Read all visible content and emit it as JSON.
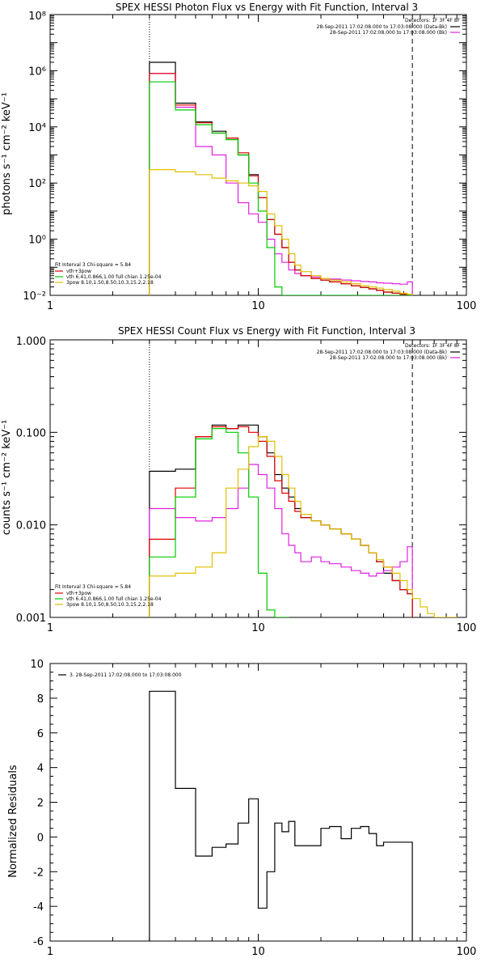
{
  "chart_data": [
    {
      "type": "line",
      "title": "SPEX HESSI Photon Flux vs Energy with Fit Function, Interval 3",
      "xlabel": "",
      "ylabel": "photons s⁻¹ cm⁻² keV⁻¹",
      "xscale": "log",
      "yscale": "log",
      "xlim": [
        1,
        100
      ],
      "ylim": [
        0.01,
        100000000
      ],
      "x_tick_labels": [
        "1",
        "10",
        "100"
      ],
      "y_tick_labels": [
        "10⁻²",
        "10⁰",
        "10²",
        "10⁴",
        "10⁶",
        "10⁸"
      ],
      "vlines": [
        3,
        55
      ],
      "legend_top": {
        "title": "Detectors: 1F 3F 4F 8F",
        "entries": [
          {
            "label": "28-Sep-2011 17:02:08.000 to 17:03:08.000 (Data-Bk)",
            "color": "#000000"
          },
          {
            "label": "28-Sep-2011 17:02:08.000 to 17:03:08.000 (Bk)",
            "color": "#e020e0"
          }
        ]
      },
      "legend_fit": {
        "title": "Fit Interval 3   Chi-square = 5.84",
        "entries": [
          {
            "label": "vth+3pow",
            "color": "#dd0000"
          },
          {
            "label": "vth 6.41,0.866,1.00  full chian 1.25e-04",
            "color": "#00cc00"
          },
          {
            "label": "3pow 8.10,1.50,8.50,10.3,15.2,2.18",
            "color": "#e0c000"
          }
        ]
      },
      "bin_edges": [
        3,
        4,
        5,
        6,
        7,
        8,
        9,
        10,
        11,
        12,
        13,
        14,
        15,
        16,
        18,
        20,
        22,
        25,
        28,
        31,
        34,
        37,
        40,
        44,
        48,
        52,
        55
      ],
      "series": [
        {
          "name": "Data-Bk",
          "color": "#000000",
          "values": [
            2000000,
            70000,
            15000,
            7000,
            4000,
            1000,
            200,
            30,
            5,
            1.5,
            0.5,
            0.15,
            0.08,
            0.05,
            0.04,
            0.035,
            0.03,
            0.026,
            0.022,
            0.019,
            0.017,
            0.015,
            0.013,
            0.012,
            0.011,
            0.01
          ]
        },
        {
          "name": "Bk",
          "color": "#e020e0",
          "values": [
            800000,
            50000,
            2000,
            1000,
            100,
            20,
            8,
            4,
            1,
            0.3,
            0.15,
            0.08,
            0.06,
            0.05,
            0.045,
            0.04,
            0.038,
            0.035,
            0.033,
            0.031,
            0.03,
            0.028,
            0.027,
            0.026,
            0.025,
            0.03
          ]
        },
        {
          "name": "vth+3pow",
          "color": "#dd0000",
          "values": [
            800000,
            60000,
            14000,
            6000,
            4000,
            1200,
            180,
            30,
            5,
            1.5,
            0.5,
            0.15,
            0.08,
            0.05,
            0.04,
            0.035,
            0.03,
            0.026,
            0.022,
            0.019,
            0.017,
            0.015,
            0.013,
            0.012,
            0.011,
            0.01
          ]
        },
        {
          "name": "vth",
          "color": "#00cc00",
          "values": [
            400000,
            40000,
            12000,
            6000,
            3500,
            1000,
            100,
            10,
            0.5,
            0.02,
            0.01,
            0.01,
            0.01,
            0.01,
            0.01,
            0.01,
            0.01,
            0.01,
            0.01,
            0.01,
            0.01,
            0.01,
            0.01,
            0.01,
            0.01,
            0.01
          ]
        },
        {
          "name": "3pow",
          "color": "#e0c000",
          "values": [
            300,
            250,
            200,
            150,
            120,
            100,
            80,
            50,
            8,
            3,
            1,
            0.3,
            0.12,
            0.07,
            0.05,
            0.04,
            0.035,
            0.03,
            0.026,
            0.022,
            0.02,
            0.018,
            0.016,
            0.014,
            0.012,
            0.011
          ]
        }
      ]
    },
    {
      "type": "line",
      "title": "SPEX HESSI Count Flux vs Energy with Fit Function, Interval 3",
      "xlabel": "",
      "ylabel": "counts s⁻¹ cm⁻² keV⁻¹",
      "xscale": "log",
      "yscale": "log",
      "xlim": [
        1,
        100
      ],
      "ylim": [
        0.001,
        1
      ],
      "x_tick_labels": [
        "1",
        "10",
        "100"
      ],
      "y_tick_labels": [
        "0.001",
        "0.010",
        "0.100",
        "1.000"
      ],
      "vlines": [
        3,
        55
      ],
      "legend_top": {
        "title": "Detectors: 1F 3F 4F 8F",
        "entries": [
          {
            "label": "28-Sep-2011 17:02:08.000 to 17:03:08.000 (Data-Bk)",
            "color": "#000000"
          },
          {
            "label": "28-Sep-2011 17:02:08.000 to 17:03:08.000 (Bk)",
            "color": "#e020e0"
          }
        ]
      },
      "legend_fit": {
        "title": "Fit Interval 3   Chi-square = 5.84",
        "entries": [
          {
            "label": "vth+3pow",
            "color": "#dd0000"
          },
          {
            "label": "vth 6.41,0.866,1.00  full chian 1.25e-04",
            "color": "#00cc00"
          },
          {
            "label": "3pow 8.10,1.50,8.50,10.3,15.2,2.18",
            "color": "#e0c000"
          }
        ]
      },
      "bin_edges": [
        3,
        4,
        5,
        6,
        7,
        8,
        9,
        10,
        11,
        12,
        13,
        14,
        15,
        16,
        18,
        20,
        22,
        25,
        28,
        31,
        34,
        37,
        40,
        44,
        48,
        52,
        55,
        60,
        65,
        70,
        80,
        90
      ],
      "series": [
        {
          "name": "Data-Bk",
          "color": "#000000",
          "values": [
            0.038,
            0.04,
            0.09,
            0.12,
            0.11,
            0.12,
            0.12,
            0.09,
            0.06,
            0.035,
            0.025,
            0.02,
            0.015,
            0.012,
            0.011,
            0.01,
            0.009,
            0.008,
            0.007,
            0.006,
            0.005,
            0.004,
            0.003,
            0.0025,
            0.002,
            0.0018,
            null,
            null,
            null,
            null,
            null
          ]
        },
        {
          "name": "Bk",
          "color": "#e020e0",
          "values": [
            0.015,
            0.012,
            0.011,
            0.012,
            0.015,
            0.025,
            0.045,
            0.035,
            0.025,
            0.015,
            0.008,
            0.006,
            0.005,
            0.004,
            0.0045,
            0.004,
            0.0038,
            0.0035,
            0.0032,
            0.003,
            0.0028,
            0.003,
            0.0032,
            0.0035,
            0.004,
            0.0058,
            null,
            null,
            null,
            null,
            null
          ]
        },
        {
          "name": "vth+3pow",
          "color": "#dd0000",
          "values": [
            0.007,
            0.025,
            0.09,
            0.115,
            0.11,
            0.115,
            0.1,
            0.08,
            0.055,
            0.03,
            0.022,
            0.018,
            0.014,
            0.012,
            0.011,
            0.01,
            0.009,
            0.008,
            0.007,
            0.006,
            0.005,
            0.004,
            0.0035,
            0.0025,
            0.002,
            0.0018,
            null,
            null,
            null,
            null,
            null
          ]
        },
        {
          "name": "vth",
          "color": "#00cc00",
          "values": [
            0.0045,
            0.02,
            0.085,
            0.11,
            0.1,
            0.06,
            0.02,
            0.003,
            0.0012,
            0.001,
            0.001,
            null,
            null,
            null,
            null,
            null,
            null,
            null,
            null,
            null,
            null,
            null,
            null,
            null,
            null,
            null,
            null,
            null,
            null,
            null,
            null
          ]
        },
        {
          "name": "3pow",
          "color": "#e0c000",
          "values": [
            0.0028,
            0.003,
            0.0035,
            0.005,
            0.025,
            0.04,
            0.07,
            0.09,
            0.08,
            0.055,
            0.035,
            0.025,
            0.018,
            0.013,
            0.011,
            0.01,
            0.009,
            0.008,
            0.007,
            0.006,
            0.005,
            0.0042,
            0.0035,
            0.003,
            0.0025,
            0.002,
            0.0016,
            0.0013,
            0.0011,
            0.001,
            0.001
          ]
        }
      ]
    },
    {
      "type": "line",
      "title": "",
      "xlabel": "",
      "ylabel": "Normalized Residuals",
      "xscale": "log",
      "yscale": "linear",
      "xlim": [
        1,
        100
      ],
      "ylim": [
        -6,
        10
      ],
      "x_tick_labels": [
        "1",
        "10",
        "100"
      ],
      "y_tick_labels": [
        "-6",
        "-4",
        "-2",
        "0",
        "2",
        "4",
        "6",
        "8",
        "10"
      ],
      "legend": "3. 28-Sep-2011 17:02:08.000 to 17:03:08.000",
      "bin_edges": [
        3,
        4,
        5,
        6,
        7,
        8,
        9,
        10,
        11,
        12,
        13,
        14,
        15,
        16,
        18,
        20,
        22,
        25,
        28,
        31,
        34,
        37,
        40,
        44,
        48,
        52,
        55
      ],
      "series": [
        {
          "name": "3. 28-Sep-2011 17:02:08.000 to 17:03:08.000",
          "color": "#000000",
          "values": [
            8.4,
            2.8,
            -1.1,
            -0.6,
            -0.4,
            0.8,
            2.2,
            -4.1,
            -2.0,
            0.8,
            0.3,
            0.9,
            -0.5,
            -0.5,
            -0.5,
            0.5,
            0.6,
            -0.1,
            0.5,
            0.6,
            0.2,
            -0.5,
            -0.3,
            -0.3,
            -0.3,
            -0.3
          ]
        }
      ]
    }
  ]
}
